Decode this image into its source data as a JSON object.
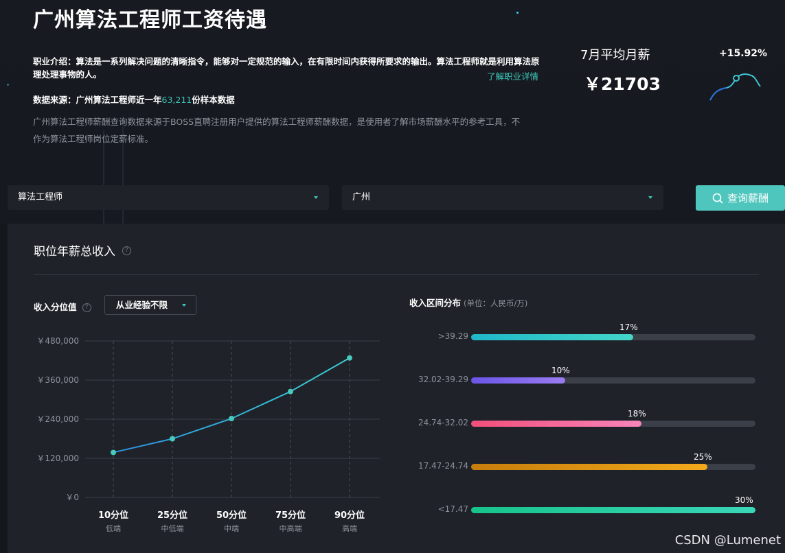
{
  "page": {
    "title": "广州算法工程师工资待遇",
    "intro": "职业介绍：算法是一系列解决问题的清晰指令，能够对一定规范的输入，在有限时间内获得所要求的输出。算法工程师就是利用算法原理处理事物的人。",
    "intro_link": "了解职业详情",
    "source_prefix": "数据来源：广州算法工程师近一年",
    "source_count": "63,211",
    "source_suffix": "份样本数据",
    "disclaimer": "广州算法工程师薪酬查询数据来源于BOSS直聘注册用户提供的算法工程师薪酬数据，是使用者了解市场薪酬水平的参考工具，不作为算法工程师岗位定薪标准。"
  },
  "summary": {
    "avg_label": "7月平均月薪",
    "avg_value": "￥21703",
    "change": "+15.92%"
  },
  "search": {
    "job": "算法工程师",
    "city": "广州",
    "button": "查询薪酬"
  },
  "panel": {
    "title": "职位年薪总收入",
    "help": "?",
    "percentile_label": "收入分位值",
    "experience_select": "从业经验不限",
    "dist_title": "收入区间分布",
    "dist_unit": "(单位：人民币/万)"
  },
  "colors": {
    "accent": "#4fc6bd",
    "line": "#2ea8d8"
  },
  "chart_data": [
    {
      "type": "line",
      "x": [
        "10分位",
        "25分位",
        "50分位",
        "75分位",
        "90分位"
      ],
      "x_sublabels": [
        "低端",
        "中低端",
        "中端",
        "中高端",
        "高端"
      ],
      "y_ticks": [
        "￥0",
        "￥120,000",
        "￥240,000",
        "￥360,000",
        "￥480,000"
      ],
      "ylim": [
        0,
        480000
      ],
      "series": [
        {
          "values": [
            138000,
            180000,
            242000,
            325000,
            428000
          ]
        }
      ],
      "grid": true
    },
    {
      "type": "bar",
      "orientation": "horizontal",
      "categories": [
        ">39.29",
        "32.02-39.29",
        "24.74-32.02",
        "17.47-24.74",
        "<17.47"
      ],
      "values": [
        17,
        10,
        18,
        25,
        30
      ],
      "labels": [
        "17%",
        "10%",
        "18%",
        "25%",
        "30%"
      ],
      "fill_fractions": [
        0.57,
        0.33,
        0.6,
        0.83,
        1.0
      ],
      "colors": [
        [
          "#1fb6c9",
          "#44d6c8"
        ],
        [
          "#6a55e8",
          "#9a7cf0"
        ],
        [
          "#f24e7a",
          "#f985b9"
        ],
        [
          "#c77d0a",
          "#f4a91c"
        ],
        [
          "#17c48a",
          "#3ad6b9"
        ]
      ]
    }
  ],
  "watermark": "CSDN @Lumenet"
}
